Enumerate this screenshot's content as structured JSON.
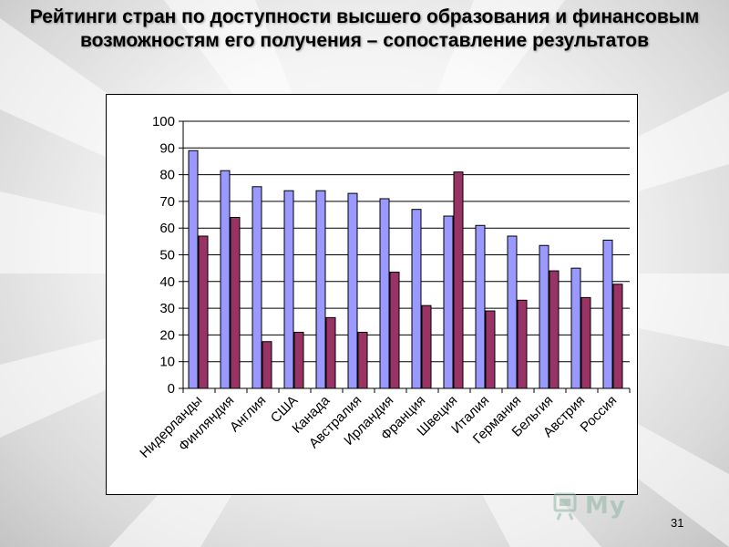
{
  "slide": {
    "title": "Рейтинги стран по доступности высшего образования и финансовым возможностям его получения – сопоставление результатов",
    "page_number": "31",
    "logo_text": "My",
    "logo_icon": "monitor-screen-icon"
  },
  "colors": {
    "series_1": "#9999ff",
    "series_2": "#993366",
    "frame_border": "#000000"
  },
  "chart_data": {
    "type": "bar",
    "categories": [
      "Нидерланды",
      "Финляндия",
      "Англия",
      "США",
      "Канада",
      "Австралия",
      "Ирландия",
      "Франция",
      "Швеция",
      "Италия",
      "Германия",
      "Бельгия",
      "Австрия",
      "Россия"
    ],
    "series": [
      {
        "values": [
          89,
          81.5,
          75.5,
          74,
          74,
          73,
          71,
          67,
          64.5,
          61,
          57,
          53.5,
          45,
          55.5
        ]
      },
      {
        "values": [
          57,
          64,
          17.5,
          21,
          26.5,
          21,
          43.5,
          31,
          81,
          29,
          33,
          44,
          34,
          39
        ]
      }
    ],
    "ylim": [
      0,
      100
    ],
    "yticks": [
      "0",
      "10",
      "20",
      "30",
      "40",
      "50",
      "60",
      "70",
      "80",
      "90",
      "100"
    ],
    "grid": true,
    "legend": "none",
    "title": "",
    "xlabel": "",
    "ylabel": ""
  }
}
